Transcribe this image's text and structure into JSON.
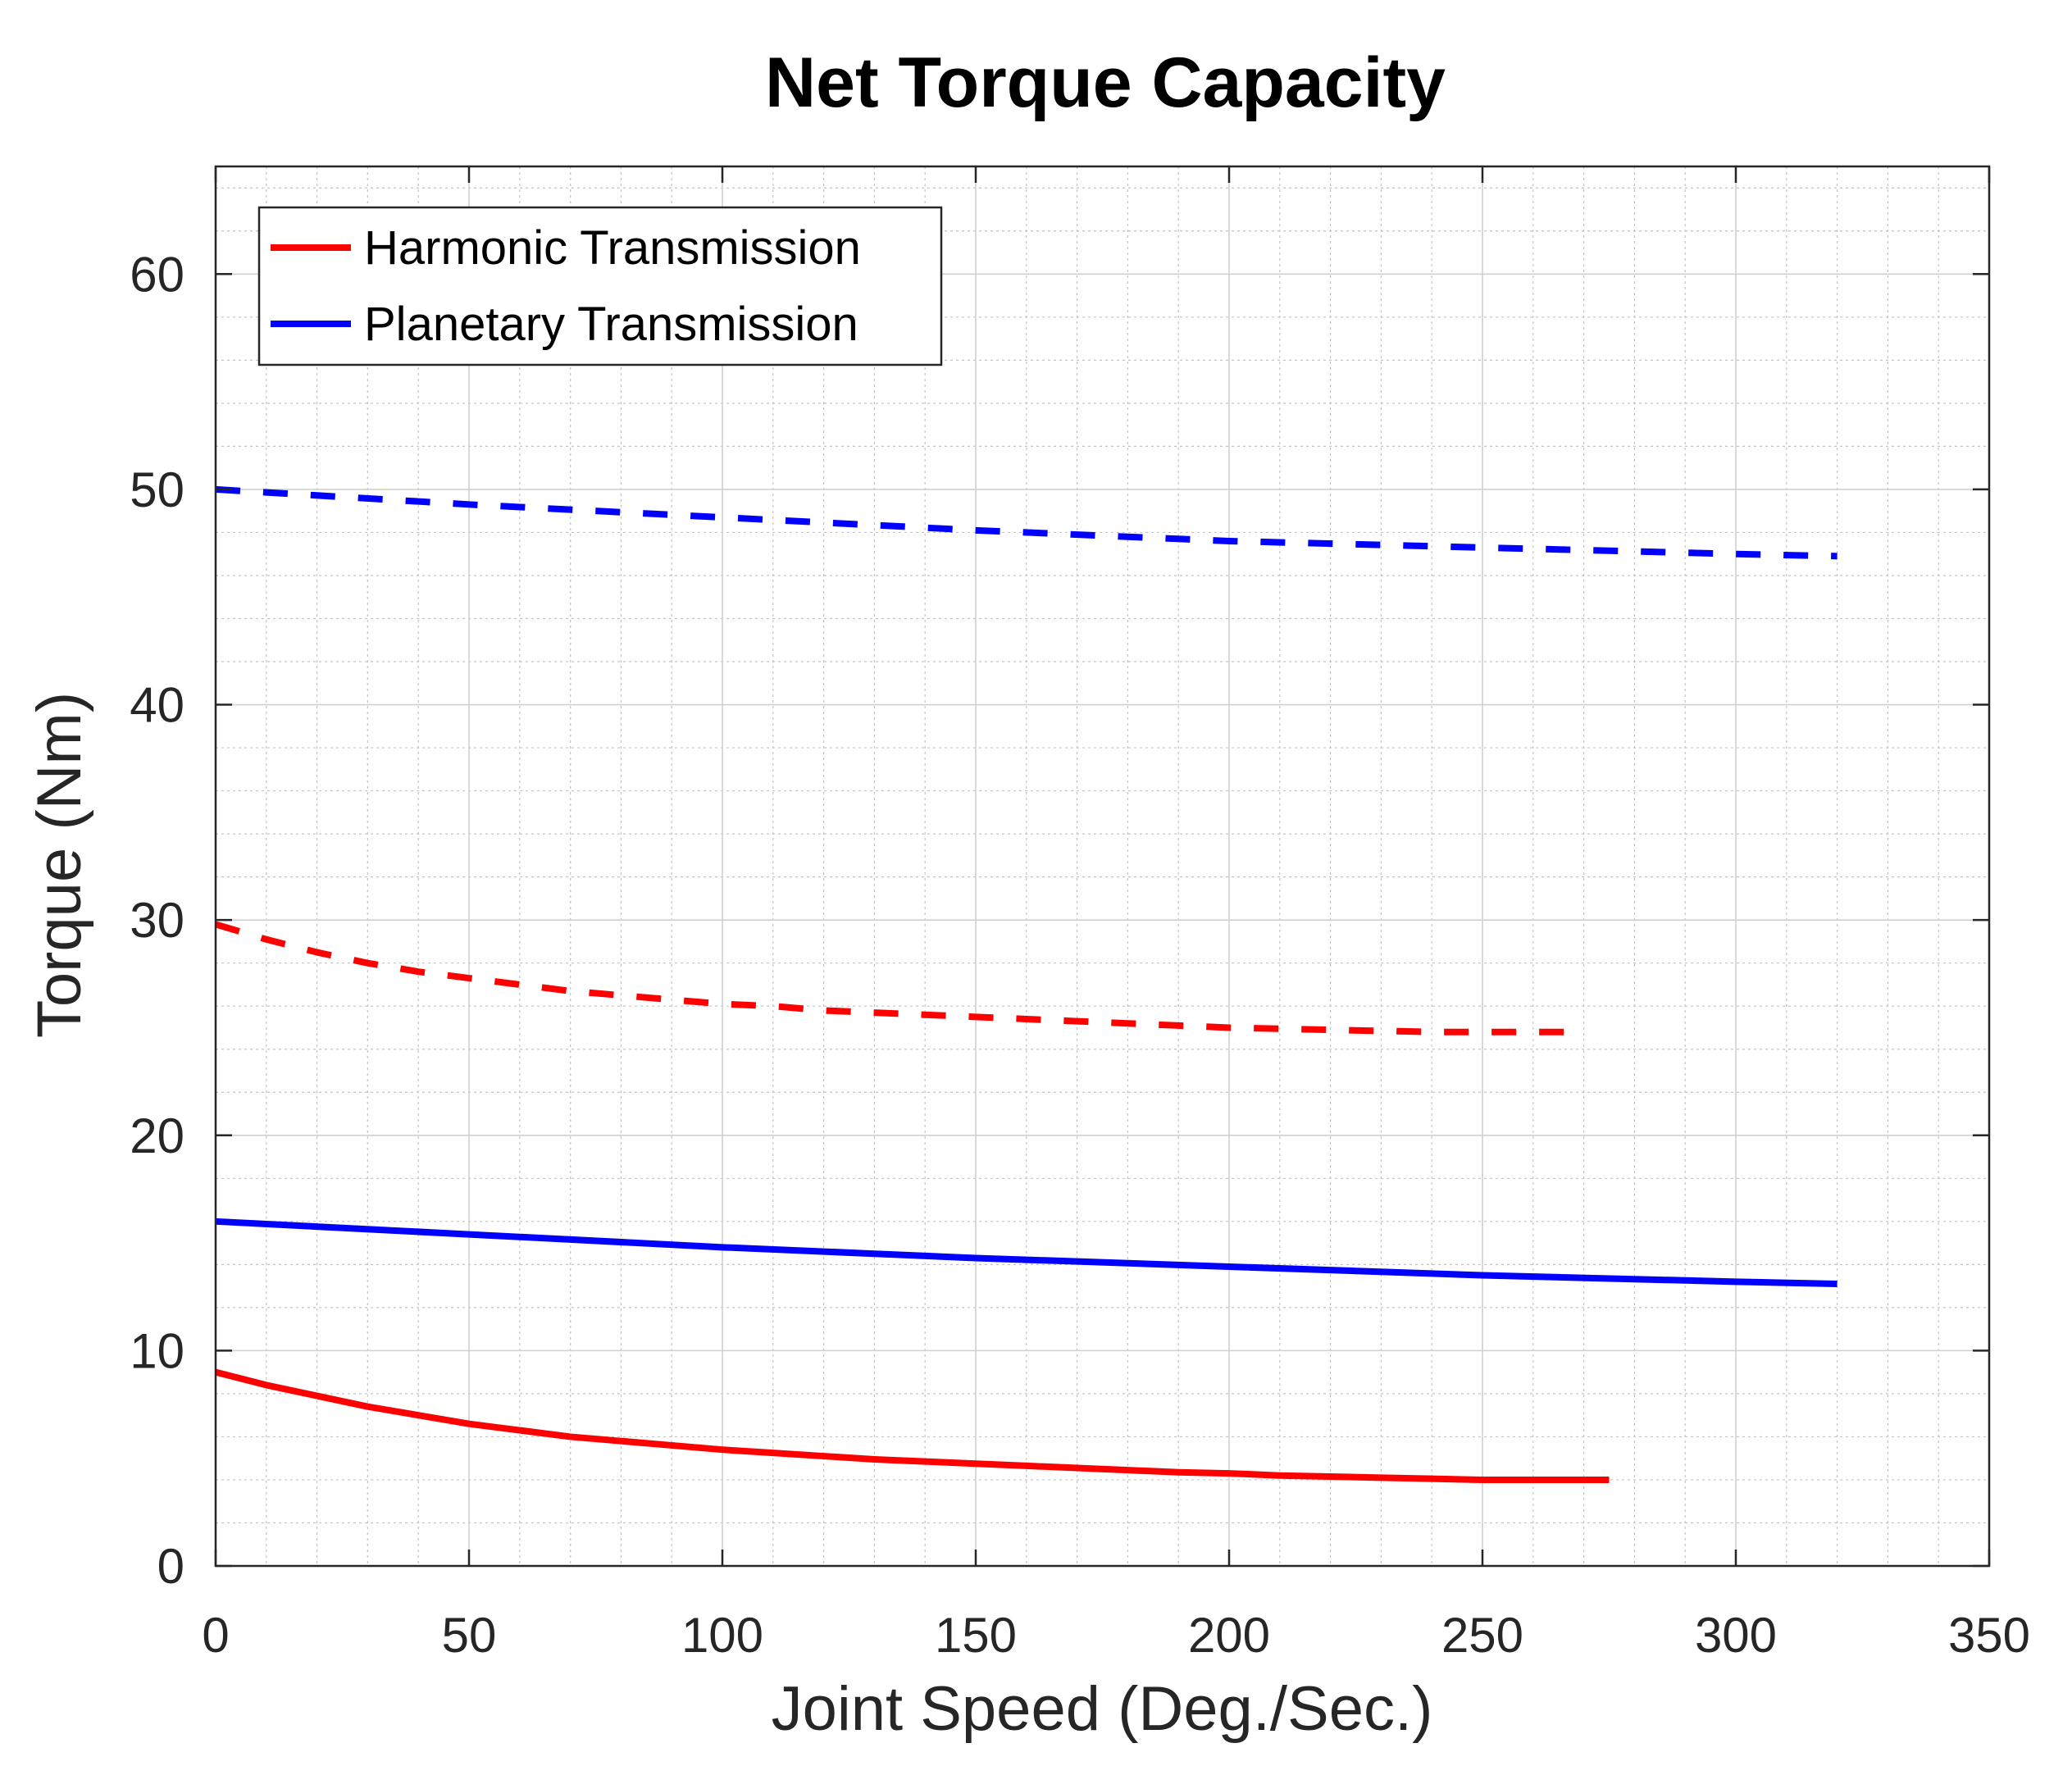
{
  "chart_data": {
    "type": "line",
    "title": "Net Torque Capacity",
    "xlabel": "Joint Speed (Deg./Sec.)",
    "ylabel": "Torque (Nm)",
    "xlim": [
      0,
      350
    ],
    "ylim": [
      0,
      65
    ],
    "xticks": [
      0,
      50,
      100,
      150,
      200,
      250,
      300,
      350
    ],
    "yticks": [
      0,
      10,
      20,
      30,
      40,
      50,
      60
    ],
    "xtick_labels": [
      "0",
      "50",
      "100",
      "150",
      "200",
      "250",
      "300",
      "350"
    ],
    "ytick_labels": [
      "0",
      "10",
      "20",
      "30",
      "40",
      "50",
      "60"
    ],
    "grid": true,
    "minor_grid": true,
    "legend_position": "top-left",
    "legend": [
      {
        "label": "Harmonic Transmission",
        "color": "#ff0000"
      },
      {
        "label": "Planetary Transmission",
        "color": "#0000ff"
      }
    ],
    "series": [
      {
        "name": "Harmonic Transmission (dashed)",
        "color": "#ff0000",
        "style": "dashed",
        "x": [
          0,
          10,
          20,
          30,
          40,
          50,
          60,
          70,
          80,
          90,
          100,
          110,
          120,
          130,
          140,
          150,
          160,
          170,
          180,
          190,
          200,
          210,
          220,
          230,
          240,
          250,
          260,
          270
        ],
        "y": [
          29.8,
          29.1,
          28.5,
          28.0,
          27.6,
          27.3,
          27.0,
          26.7,
          26.5,
          26.3,
          26.1,
          26.0,
          25.8,
          25.7,
          25.6,
          25.5,
          25.4,
          25.3,
          25.2,
          25.1,
          25.0,
          24.95,
          24.9,
          24.85,
          24.8,
          24.8,
          24.8,
          24.8
        ]
      },
      {
        "name": "Harmonic Transmission (solid)",
        "color": "#ff0000",
        "style": "solid",
        "x": [
          0,
          10,
          20,
          30,
          40,
          50,
          60,
          70,
          80,
          90,
          100,
          110,
          120,
          130,
          140,
          150,
          160,
          170,
          180,
          190,
          200,
          210,
          220,
          230,
          240,
          250,
          260,
          270,
          275
        ],
        "y": [
          9.0,
          8.4,
          7.9,
          7.4,
          7.0,
          6.6,
          6.3,
          6.0,
          5.8,
          5.6,
          5.4,
          5.25,
          5.1,
          4.95,
          4.85,
          4.75,
          4.65,
          4.55,
          4.45,
          4.35,
          4.3,
          4.2,
          4.15,
          4.1,
          4.05,
          4.0,
          4.0,
          4.0,
          4.0
        ]
      },
      {
        "name": "Planetary Transmission (dashed)",
        "color": "#0000ff",
        "style": "dashed",
        "x": [
          0,
          50,
          100,
          150,
          200,
          250,
          300,
          320
        ],
        "y": [
          50.0,
          49.3,
          48.7,
          48.1,
          47.6,
          47.3,
          47.0,
          46.9
        ]
      },
      {
        "name": "Planetary Transmission (solid)",
        "color": "#0000ff",
        "style": "solid",
        "x": [
          0,
          50,
          100,
          150,
          200,
          250,
          300,
          320
        ],
        "y": [
          16.0,
          15.4,
          14.8,
          14.3,
          13.9,
          13.5,
          13.2,
          13.1
        ]
      }
    ]
  }
}
